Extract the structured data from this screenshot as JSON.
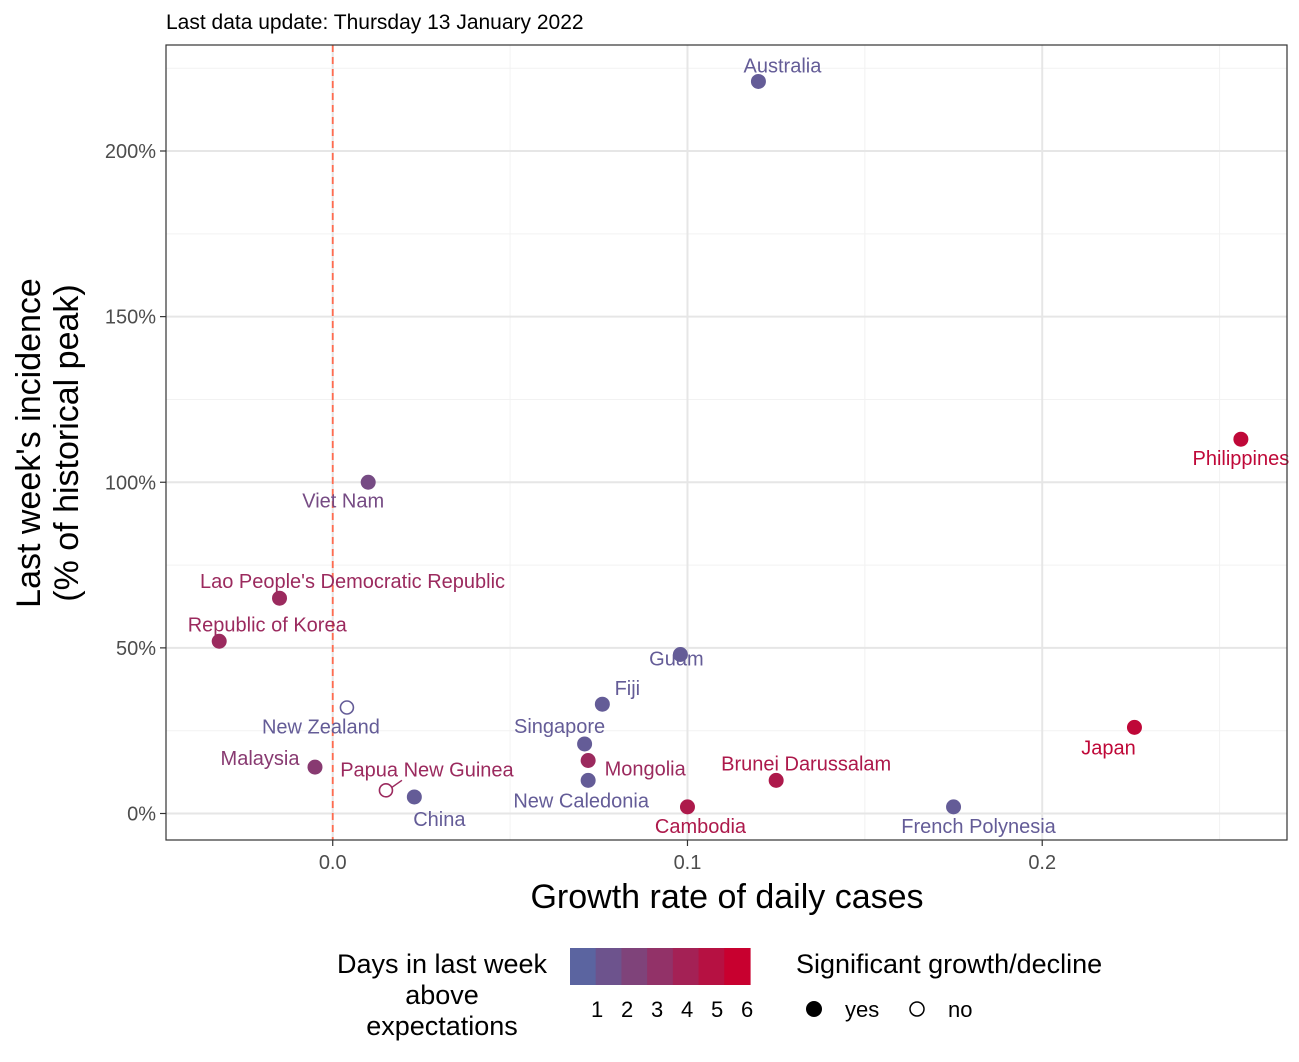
{
  "subtitle": "Last data update: Thursday 13 January 2022",
  "colors": {
    "low": "#5b64a0",
    "high": "#c8002f",
    "ref_line": "#ff6b4f",
    "grid_major": "#e6e6e6",
    "grid_minor": "#f2f2f2",
    "panel_border": "#333333"
  },
  "chart_data": {
    "type": "scatter",
    "xlabel": "Growth rate of daily cases",
    "ylabel_line1": "Last week's incidence",
    "ylabel_line2": "(% of historical peak)",
    "xlim": [
      -0.047,
      0.269
    ],
    "ylim": [
      -8,
      232
    ],
    "x_ticks": [
      0.0,
      0.1,
      0.2
    ],
    "x_tick_labels": [
      "0.0",
      "0.1",
      "0.2"
    ],
    "y_ticks": [
      0,
      50,
      100,
      150,
      200
    ],
    "y_tick_labels": [
      "0%",
      "50%",
      "100%",
      "150%",
      "200%"
    ],
    "reference_line_x": 0,
    "grid": true,
    "points": [
      {
        "name": "Australia",
        "x": 0.12,
        "y": 221,
        "days": 1,
        "significant": true
      },
      {
        "name": "Philippines",
        "x": 0.256,
        "y": 113,
        "days": 6,
        "significant": true
      },
      {
        "name": "Viet Nam",
        "x": 0.01,
        "y": 100,
        "days": 2,
        "significant": true
      },
      {
        "name": "Lao People's Democratic Republic",
        "x": -0.015,
        "y": 65,
        "days": 4,
        "significant": true
      },
      {
        "name": "Republic of Korea",
        "x": -0.032,
        "y": 52,
        "days": 4,
        "significant": true
      },
      {
        "name": "Guam",
        "x": 0.098,
        "y": 48,
        "days": 1,
        "significant": true
      },
      {
        "name": "New Zealand",
        "x": 0.004,
        "y": 32,
        "days": 1,
        "significant": false
      },
      {
        "name": "Fiji",
        "x": 0.076,
        "y": 33,
        "days": 1,
        "significant": true
      },
      {
        "name": "Singapore",
        "x": 0.071,
        "y": 21,
        "days": 1,
        "significant": true
      },
      {
        "name": "Japan",
        "x": 0.226,
        "y": 26,
        "days": 6,
        "significant": true
      },
      {
        "name": "Malaysia",
        "x": -0.005,
        "y": 14,
        "days": 3,
        "significant": true
      },
      {
        "name": "Mongolia",
        "x": 0.072,
        "y": 16,
        "days": 4,
        "significant": true
      },
      {
        "name": "Papua New Guinea",
        "x": 0.015,
        "y": 7,
        "days": 4,
        "significant": false
      },
      {
        "name": "Brunei Darussalam",
        "x": 0.125,
        "y": 10,
        "days": 5,
        "significant": true
      },
      {
        "name": "New Caledonia",
        "x": 0.072,
        "y": 10,
        "days": 1,
        "significant": true
      },
      {
        "name": "China",
        "x": 0.023,
        "y": 5,
        "days": 1,
        "significant": true
      },
      {
        "name": "Cambodia",
        "x": 0.1,
        "y": 2,
        "days": 5,
        "significant": true
      },
      {
        "name": "French Polynesia",
        "x": 0.175,
        "y": 2,
        "days": 1,
        "significant": true
      }
    ]
  },
  "legend": {
    "color_title_lines": [
      "Days in last week",
      "above",
      "expectations"
    ],
    "color_levels": [
      1,
      2,
      3,
      4,
      5,
      6
    ],
    "shape_title": "Significant growth/decline",
    "shape_items": [
      {
        "label": "yes",
        "filled": true
      },
      {
        "label": "no",
        "filled": false
      }
    ]
  }
}
